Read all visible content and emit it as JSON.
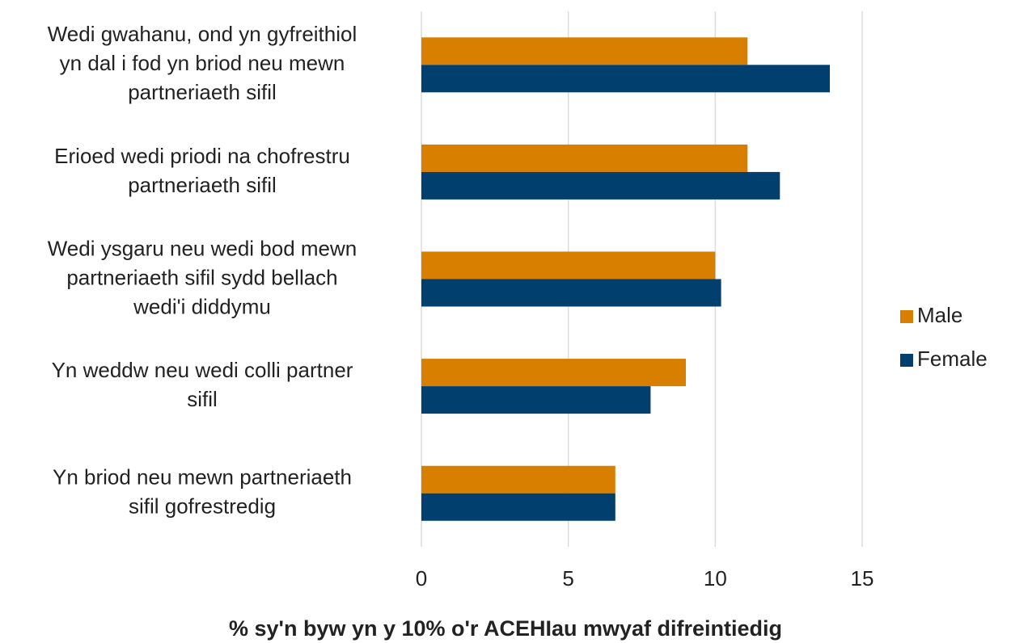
{
  "chart_data": {
    "type": "barh",
    "x_label": "% sy'n byw yn y 10% o'r ACEHIau mwyaf difreintiedig",
    "categories": [
      [
        "Wedi gwahanu, ond yn gyfreithiol",
        "yn dal i fod yn briod neu mewn",
        "partneriaeth sifil"
      ],
      [
        "Erioed wedi priodi na chofrestru",
        "partneriaeth sifil"
      ],
      [
        "Wedi ysgaru neu wedi bod mewn",
        "partneriaeth sifil sydd bellach",
        "wedi'i diddymu"
      ],
      [
        "Yn weddw neu wedi colli partner",
        "sifil"
      ],
      [
        "Yn briod neu mewn partneriaeth",
        "sifil gofrestredig"
      ]
    ],
    "series": [
      {
        "name": "Male",
        "color": "#d97f00",
        "values": [
          11.1,
          11.1,
          10.0,
          9.0,
          6.6
        ]
      },
      {
        "name": "Female",
        "color": "#003f6e",
        "values": [
          13.9,
          12.2,
          10.2,
          7.8,
          6.6
        ]
      }
    ],
    "xlim": [
      0,
      15
    ],
    "xticks": [
      0,
      5,
      10,
      15
    ],
    "grid": true,
    "legend": "right"
  }
}
